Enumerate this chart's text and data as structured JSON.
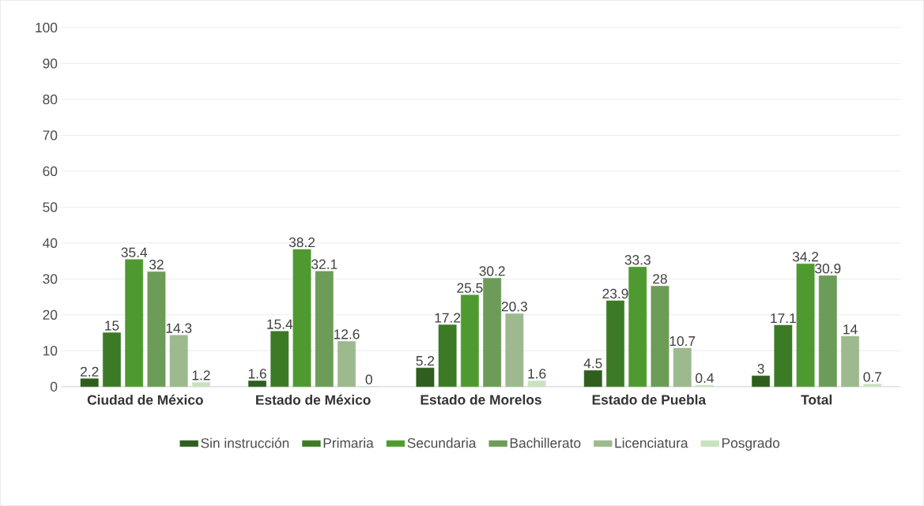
{
  "chart_data": {
    "type": "bar",
    "categories": [
      "Ciudad de México",
      "Estado de México",
      "Estado de Morelos",
      "Estado de Puebla",
      "Total"
    ],
    "series": [
      {
        "name": "Sin instrucción",
        "color": "#2f5e1e",
        "values": [
          2.2,
          1.6,
          5.2,
          4.5,
          3
        ]
      },
      {
        "name": "Primaria",
        "color": "#3d7a26",
        "values": [
          15,
          15.4,
          17.2,
          23.9,
          17.1
        ]
      },
      {
        "name": "Secundaria",
        "color": "#4f9a30",
        "values": [
          35.4,
          38.2,
          25.5,
          33.3,
          34.2
        ]
      },
      {
        "name": "Bachillerato",
        "color": "#6c9c58",
        "values": [
          32,
          32.1,
          30.2,
          28,
          30.9
        ]
      },
      {
        "name": "Licenciatura",
        "color": "#9cba8e",
        "values": [
          14.3,
          12.6,
          20.3,
          10.7,
          14
        ]
      },
      {
        "name": "Posgrado",
        "color": "#c9e2c0",
        "values": [
          1.2,
          0,
          1.6,
          0.4,
          0.7
        ]
      }
    ],
    "ylim": [
      0,
      100
    ],
    "yticks": [
      0,
      10,
      20,
      30,
      40,
      50,
      60,
      70,
      80,
      90,
      100
    ],
    "grid": "y",
    "legend": "bottom",
    "data_labels": true
  }
}
